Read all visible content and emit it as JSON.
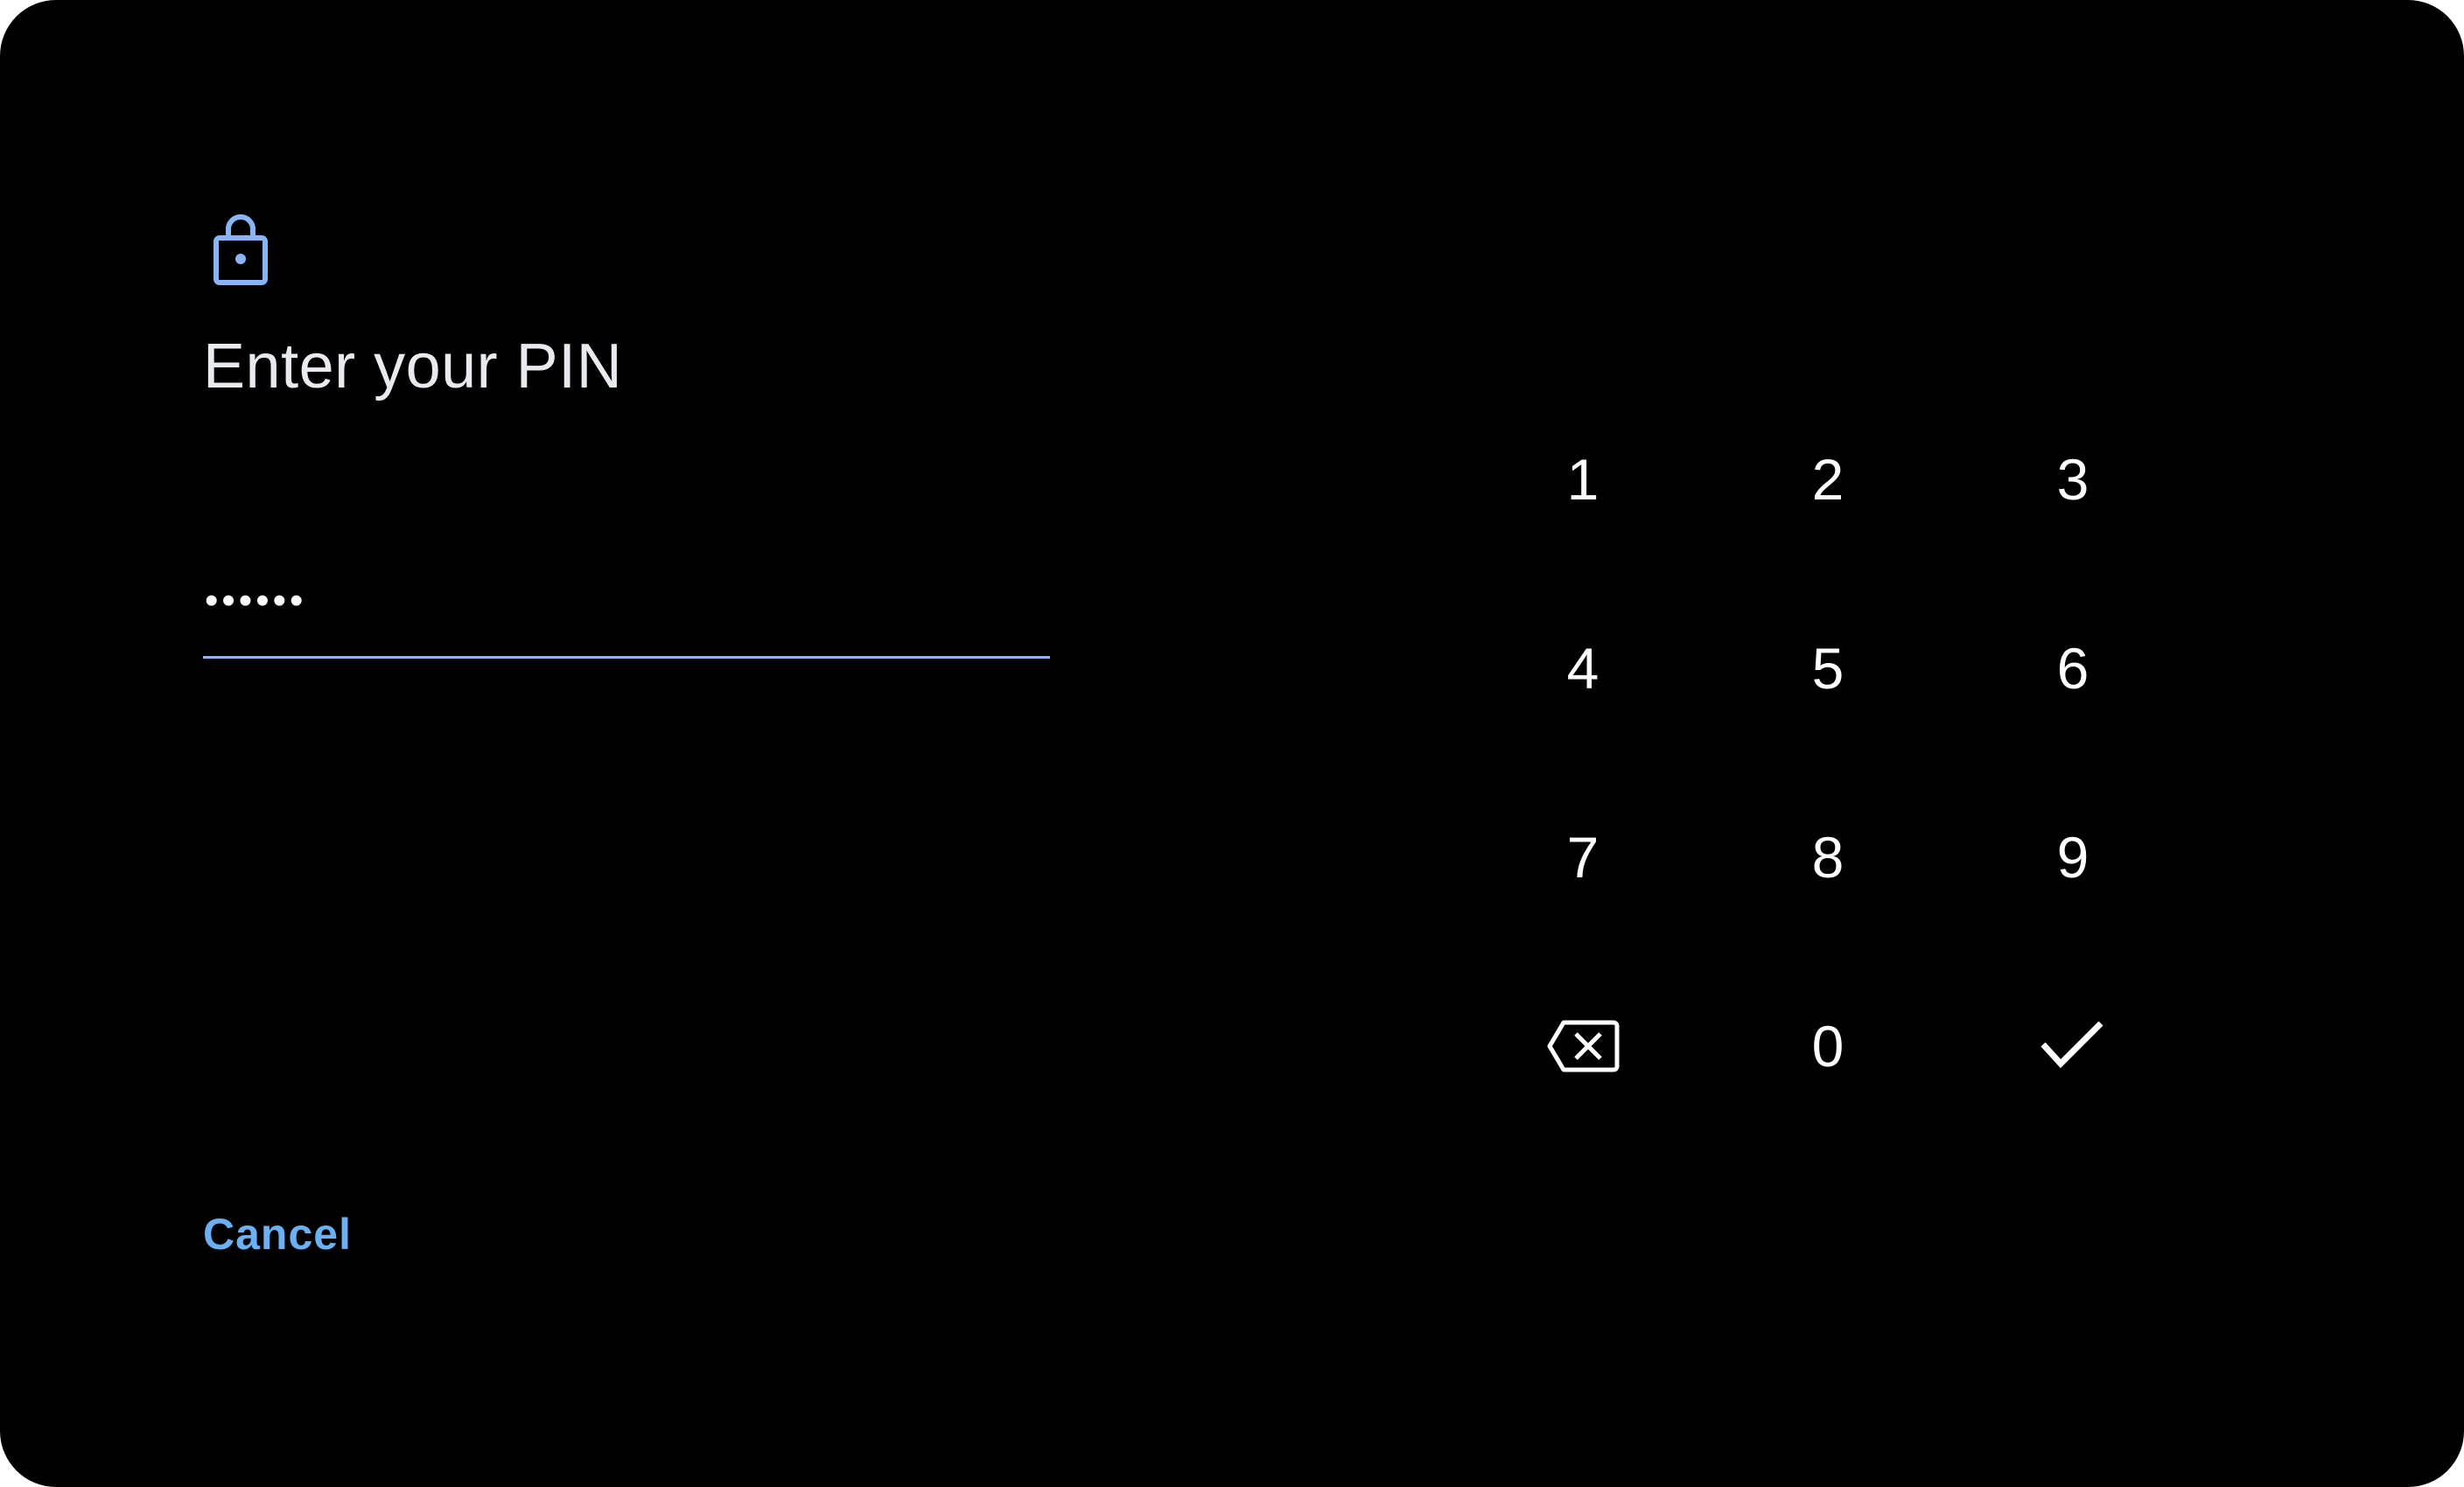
{
  "colors": {
    "accent": "#8ab4f8",
    "cancel": "#6ab0f3",
    "background": "#000000"
  },
  "header": {
    "icon": "lock-icon",
    "title": "Enter your PIN"
  },
  "pin_field": {
    "value": "••••••"
  },
  "keypad": {
    "keys": [
      "1",
      "2",
      "3",
      "4",
      "5",
      "6",
      "7",
      "8",
      "9"
    ],
    "zero": "0",
    "backspace_icon": "backspace-icon",
    "confirm_icon": "check-icon"
  },
  "footer": {
    "cancel_label": "Cancel"
  }
}
